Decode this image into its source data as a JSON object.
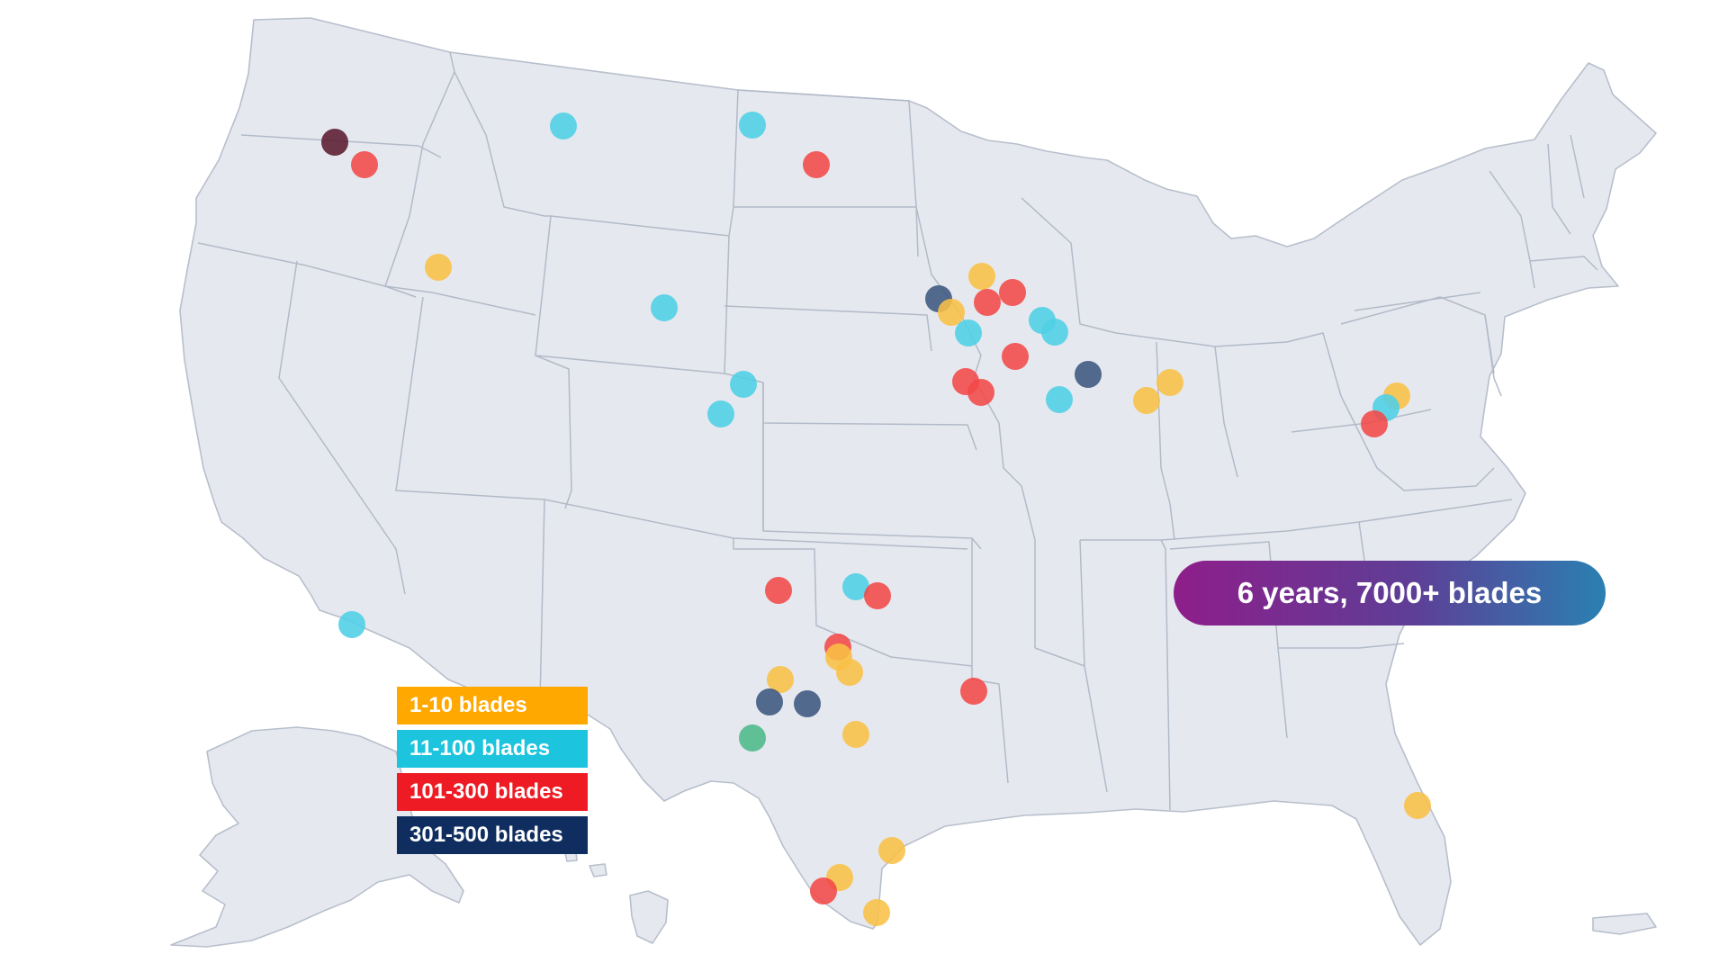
{
  "map": {
    "region": "United States",
    "legend": [
      {
        "label": "1-10 blades",
        "color": "#ffa800"
      },
      {
        "label": "11-100 blades",
        "color": "#1cc4de"
      },
      {
        "label": "101-300 blades",
        "color": "#ee1b24"
      },
      {
        "label": "301-500 blades",
        "color": "#0f2e5f"
      }
    ],
    "callout": "6 years, 7000+ blades",
    "marker_colors": {
      "range_1_10": "#f9c045",
      "range_11_100": "#4fcfe6",
      "range_101_300": "#f24848",
      "range_301_500": "#3b5680",
      "dark_marker": "#5a1a30",
      "green_marker": "#4cb889"
    }
  }
}
